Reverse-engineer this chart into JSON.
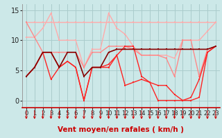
{
  "xlabel": "Vent moyen/en rafales ( km/h )",
  "background_color": "#cce8e8",
  "grid_color": "#aacccc",
  "ylim": [
    -1.2,
    16
  ],
  "xlim": [
    -0.5,
    23.5
  ],
  "yticks": [
    0,
    5,
    10,
    15
  ],
  "xticks": [
    0,
    1,
    2,
    3,
    4,
    5,
    6,
    7,
    8,
    9,
    10,
    11,
    12,
    13,
    14,
    15,
    16,
    17,
    18,
    19,
    20,
    21,
    22,
    23
  ],
  "series": [
    {
      "x": [
        0,
        1,
        2,
        3,
        4,
        5,
        6,
        7,
        8,
        9,
        10,
        11,
        12,
        13,
        14,
        15,
        16,
        17,
        18,
        19,
        20,
        21,
        22,
        23
      ],
      "y": [
        13,
        13,
        13,
        13,
        13,
        13,
        13,
        13,
        13,
        13,
        13,
        13,
        13,
        13,
        13,
        13,
        13,
        13,
        13,
        13,
        13,
        13,
        13,
        13
      ],
      "color": "#ffaaaa",
      "linewidth": 1.0,
      "marker": "s",
      "markersize": 2.0,
      "zorder": 2
    },
    {
      "x": [
        0,
        1,
        2,
        3,
        4,
        5,
        6,
        7,
        8,
        9,
        10,
        11,
        12,
        13,
        14,
        15,
        16,
        17,
        18,
        19,
        20,
        21,
        22,
        23
      ],
      "y": [
        10.5,
        10.5,
        12,
        14.5,
        10,
        10,
        10,
        5.5,
        8.5,
        8.5,
        14.5,
        12,
        11,
        9,
        7.5,
        7.5,
        7.5,
        7.5,
        7,
        10,
        10,
        10,
        11.5,
        13
      ],
      "color": "#ffaaaa",
      "linewidth": 1.0,
      "marker": "s",
      "markersize": 2.0,
      "zorder": 2
    },
    {
      "x": [
        0,
        1,
        2,
        3,
        4,
        5,
        6,
        7,
        8,
        9,
        10,
        11,
        12,
        13,
        14,
        15,
        16,
        17,
        18,
        19,
        20,
        21,
        22,
        23
      ],
      "y": [
        13,
        10.5,
        8,
        8,
        8,
        8,
        8,
        5.5,
        8,
        8,
        9,
        9,
        9,
        8.5,
        7.5,
        7.5,
        7.5,
        7,
        4,
        10,
        10,
        4,
        8.5,
        9
      ],
      "color": "#ff8888",
      "linewidth": 1.0,
      "marker": "s",
      "markersize": 2.0,
      "zorder": 3
    },
    {
      "x": [
        0,
        1,
        2,
        3,
        4,
        5,
        6,
        7,
        8,
        9,
        10,
        11,
        12,
        13,
        14,
        15,
        16,
        17,
        18,
        19,
        20,
        21,
        22,
        23
      ],
      "y": [
        4,
        5.5,
        8,
        8,
        5.5,
        6.5,
        5.5,
        0,
        5.5,
        5.5,
        6,
        7.5,
        9,
        9,
        4,
        3,
        2.5,
        2.5,
        1,
        0,
        0,
        0.5,
        8,
        9
      ],
      "color": "#ff2222",
      "linewidth": 1.0,
      "marker": "s",
      "markersize": 2.0,
      "zorder": 4
    },
    {
      "x": [
        0,
        1,
        2,
        3,
        4,
        5,
        6,
        7,
        8,
        9,
        10,
        11,
        12,
        13,
        14,
        15,
        16,
        17,
        18,
        19,
        20,
        21,
        22,
        23
      ],
      "y": [
        4,
        5.5,
        8,
        8,
        5.5,
        8,
        8,
        4,
        5.5,
        5.5,
        8,
        8.5,
        8.5,
        8.5,
        8.5,
        8.5,
        8.5,
        8.5,
        8.5,
        8.5,
        8.5,
        8.5,
        8.5,
        9
      ],
      "color": "#880000",
      "linewidth": 1.2,
      "marker": "s",
      "markersize": 2.0,
      "zorder": 5
    },
    {
      "x": [
        0,
        1,
        2,
        3,
        4,
        5,
        6,
        7,
        8,
        9,
        10,
        11,
        12,
        13,
        14,
        15,
        16,
        17,
        18,
        19,
        20,
        21,
        22,
        23
      ],
      "y": [
        4,
        5.5,
        8,
        3.5,
        5.5,
        6.5,
        5.5,
        0,
        5.5,
        5.5,
        5.5,
        7.5,
        2.5,
        3,
        3.5,
        3,
        0,
        0,
        0,
        0,
        0.5,
        3.5,
        8,
        9
      ],
      "color": "#ff2222",
      "linewidth": 1.0,
      "marker": "s",
      "markersize": 2.0,
      "zorder": 4
    }
  ],
  "arrow_color": "#cc0000",
  "xlabel_color": "#cc0000",
  "xlabel_fontsize": 7.5,
  "tick_fontsize": 6,
  "ytick_fontsize": 7
}
